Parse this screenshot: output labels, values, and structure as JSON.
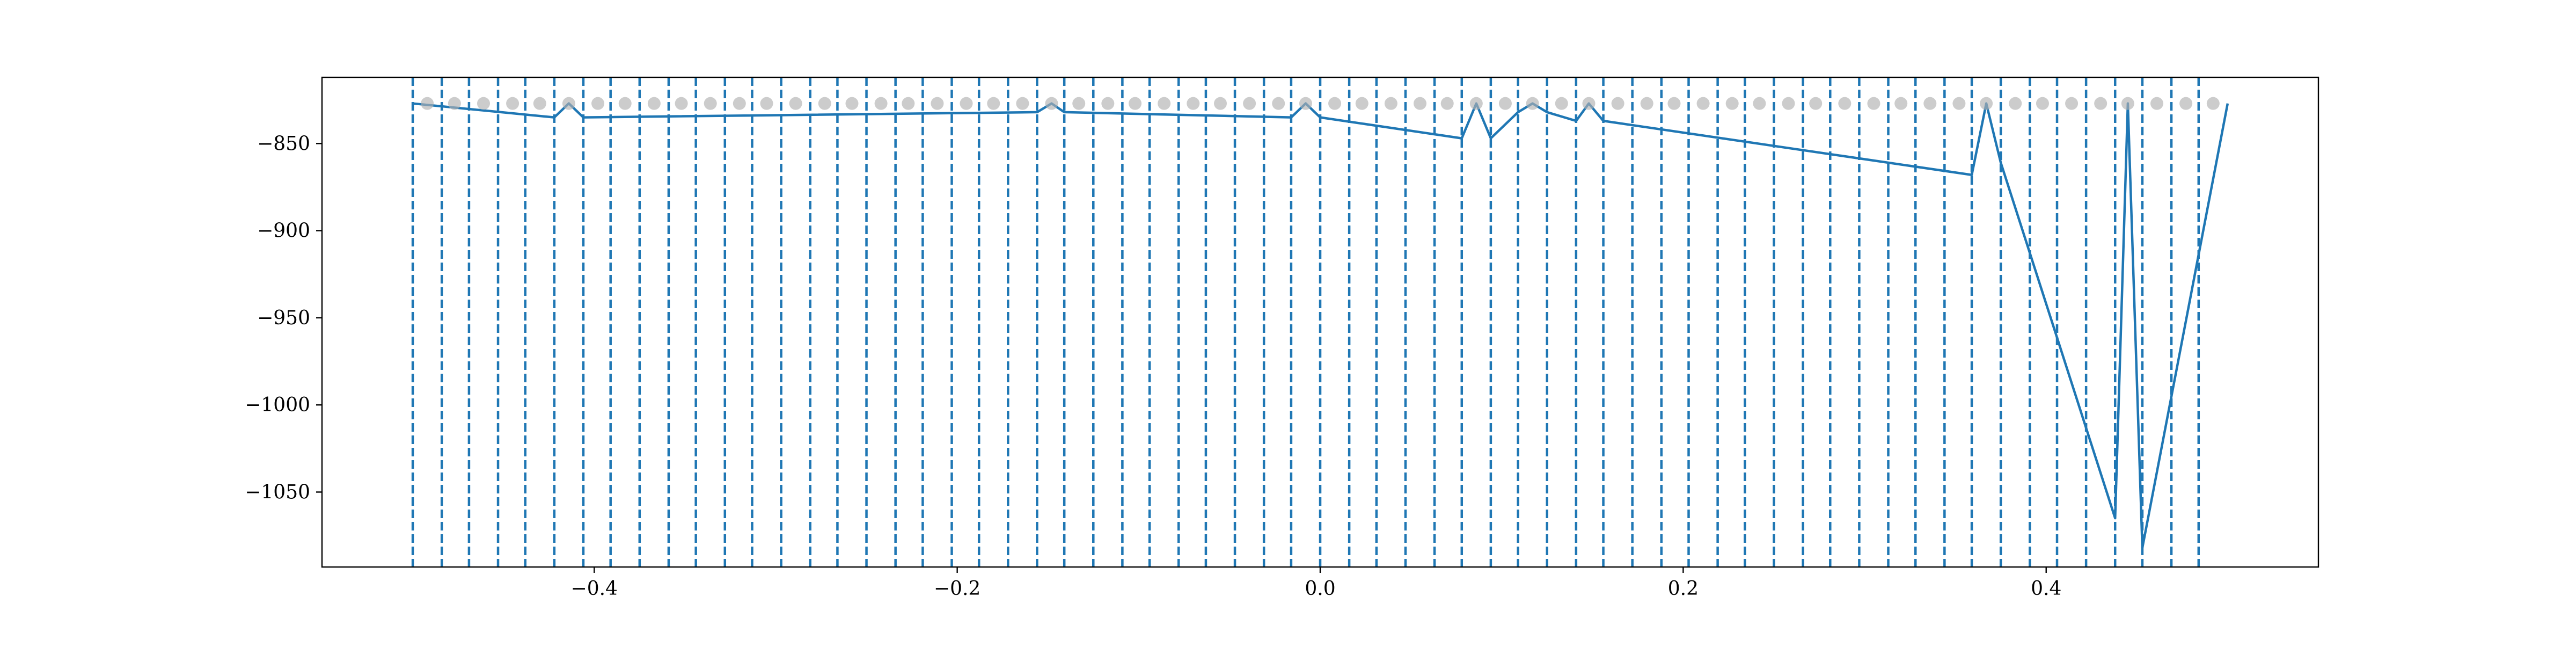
{
  "chart_data": {
    "type": "line",
    "title": "",
    "xlabel": "",
    "ylabel": "",
    "xlim": [
      -0.55,
      0.55
    ],
    "ylim": [
      -1093,
      -812
    ],
    "x_ticks": [
      -0.4,
      -0.2,
      0.0,
      0.2,
      0.4
    ],
    "x_tick_labels": [
      "−0.4",
      "−0.2",
      "0.0",
      "0.2",
      "0.4"
    ],
    "y_ticks": [
      -850,
      -900,
      -950,
      -1000,
      -1050
    ],
    "y_tick_labels": [
      "−850",
      "−900",
      "−950",
      "−1000",
      "−1050"
    ],
    "grid": false,
    "colors": {
      "line": "#1f77b4",
      "markers": "#b0b0b0",
      "vlines": "#1f77b4"
    },
    "baseline": -827,
    "breakpoints": [
      -0.5,
      -0.484,
      -0.469,
      -0.453,
      -0.438,
      -0.422,
      -0.406,
      -0.391,
      -0.375,
      -0.359,
      -0.344,
      -0.328,
      -0.313,
      -0.297,
      -0.281,
      -0.266,
      -0.25,
      -0.234,
      -0.219,
      -0.203,
      -0.188,
      -0.172,
      -0.156,
      -0.141,
      -0.125,
      -0.109,
      -0.094,
      -0.078,
      -0.063,
      -0.047,
      -0.031,
      -0.016,
      0.0,
      0.016,
      0.031,
      0.047,
      0.063,
      0.078,
      0.094,
      0.109,
      0.125,
      0.141,
      0.156,
      0.172,
      0.188,
      0.203,
      0.219,
      0.234,
      0.25,
      0.266,
      0.281,
      0.297,
      0.313,
      0.328,
      0.344,
      0.359,
      0.375,
      0.391,
      0.406,
      0.422,
      0.438,
      0.453,
      0.469,
      0.484
    ],
    "marker_points": {
      "x": [
        -0.492,
        -0.477,
        -0.461,
        -0.445,
        -0.43,
        -0.414,
        -0.398,
        -0.383,
        -0.367,
        -0.352,
        -0.336,
        -0.32,
        -0.305,
        -0.289,
        -0.273,
        -0.258,
        -0.242,
        -0.227,
        -0.211,
        -0.195,
        -0.18,
        -0.164,
        -0.148,
        -0.133,
        -0.117,
        -0.102,
        -0.086,
        -0.07,
        -0.055,
        -0.039,
        -0.023,
        -0.008,
        0.008,
        0.023,
        0.039,
        0.055,
        0.07,
        0.086,
        0.102,
        0.117,
        0.133,
        0.148,
        0.164,
        0.18,
        0.195,
        0.211,
        0.227,
        0.242,
        0.258,
        0.273,
        0.289,
        0.305,
        0.32,
        0.336,
        0.352,
        0.367,
        0.383,
        0.398,
        0.414,
        0.43,
        0.445,
        0.461,
        0.477,
        0.492
      ],
      "y": [
        -827,
        -827,
        -827,
        -827,
        -827,
        -827,
        -827,
        -827,
        -827,
        -827,
        -827,
        -827,
        -827,
        -827,
        -827,
        -827,
        -827,
        -827,
        -827,
        -827,
        -827,
        -827,
        -827,
        -827,
        -827,
        -827,
        -827,
        -827,
        -827,
        -827,
        -827,
        -827,
        -827,
        -827,
        -827,
        -827,
        -827,
        -827,
        -827,
        -827,
        -827,
        -827,
        -827,
        -827,
        -827,
        -827,
        -827,
        -827,
        -827,
        -827,
        -827,
        -827,
        -827,
        -827,
        -827,
        -827,
        -827,
        -827,
        -827,
        -827,
        -827,
        -827,
        -827,
        -827
      ]
    },
    "series": [
      {
        "x": [
          -0.5,
          -0.422,
          -0.414,
          -0.406,
          -0.156,
          -0.148,
          -0.141,
          -0.016,
          -0.008,
          0.0,
          0.078,
          0.086,
          0.094,
          0.109,
          0.117,
          0.125,
          0.141,
          0.148,
          0.156,
          0.359,
          0.367,
          0.375,
          0.438,
          0.445,
          0.453,
          0.5
        ],
        "y": [
          -827,
          -835,
          -827,
          -835,
          -832,
          -827,
          -832,
          -835,
          -827,
          -835,
          -847,
          -827,
          -847,
          -832,
          -827,
          -832,
          -837,
          -827,
          -837,
          -868,
          -827,
          -861,
          -1065,
          -827,
          -1082,
          -827
        ]
      }
    ]
  }
}
